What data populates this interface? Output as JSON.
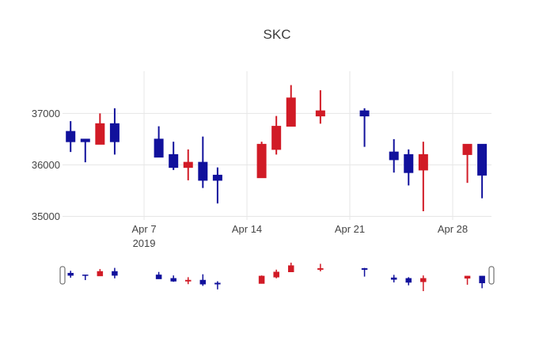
{
  "title": "SKC",
  "chart_data": {
    "type": "candlestick",
    "title": "SKC",
    "legend": "none",
    "grid": true,
    "colors": {
      "increasing": "#d11b26",
      "decreasing": "#11119c",
      "gridline": "#e6e6e6",
      "text": "#444444",
      "background": "#ffffff",
      "handle_border": "#555555",
      "handle_fill": "#ffffff"
    },
    "yaxis": {
      "ticks": [
        35000,
        36000,
        37000
      ],
      "tick_labels": [
        "35000",
        "36000",
        "37000"
      ],
      "range": [
        34930,
        37820
      ]
    },
    "xaxis": {
      "ticks": [
        {
          "day": 7,
          "label": "Apr 7",
          "year": "2019"
        },
        {
          "day": 14,
          "label": "Apr 14",
          "year": ""
        },
        {
          "day": 21,
          "label": "Apr 21",
          "year": ""
        },
        {
          "day": 28,
          "label": "Apr 28",
          "year": ""
        }
      ],
      "range_days": [
        1.45,
        30.64
      ]
    },
    "candles": [
      {
        "date": "2019-04-02",
        "day": 2,
        "open": 36650,
        "high": 36850,
        "low": 36250,
        "close": 36450
      },
      {
        "date": "2019-04-03",
        "day": 3,
        "open": 36500,
        "high": 36500,
        "low": 36050,
        "close": 36450
      },
      {
        "date": "2019-04-04",
        "day": 4,
        "open": 36400,
        "high": 37000,
        "low": 36400,
        "close": 36800
      },
      {
        "date": "2019-04-05",
        "day": 5,
        "open": 36800,
        "high": 37100,
        "low": 36200,
        "close": 36450
      },
      {
        "date": "2019-04-08",
        "day": 8,
        "open": 36500,
        "high": 36750,
        "low": 36150,
        "close": 36150
      },
      {
        "date": "2019-04-09",
        "day": 9,
        "open": 36200,
        "high": 36450,
        "low": 35900,
        "close": 35950
      },
      {
        "date": "2019-04-10",
        "day": 10,
        "open": 35950,
        "high": 36300,
        "low": 35700,
        "close": 36050
      },
      {
        "date": "2019-04-11",
        "day": 11,
        "open": 36050,
        "high": 36550,
        "low": 35550,
        "close": 35700
      },
      {
        "date": "2019-04-12",
        "day": 12,
        "open": 35800,
        "high": 35950,
        "low": 35250,
        "close": 35700
      },
      {
        "date": "2019-04-15",
        "day": 15,
        "open": 35750,
        "high": 36450,
        "low": 35750,
        "close": 36400
      },
      {
        "date": "2019-04-16",
        "day": 16,
        "open": 36300,
        "high": 36950,
        "low": 36200,
        "close": 36750
      },
      {
        "date": "2019-04-17",
        "day": 17,
        "open": 36750,
        "high": 37550,
        "low": 36750,
        "close": 37300
      },
      {
        "date": "2019-04-19",
        "day": 19,
        "open": 36950,
        "high": 37450,
        "low": 36800,
        "close": 37050
      },
      {
        "date": "2019-04-22",
        "day": 22,
        "open": 37050,
        "high": 37100,
        "low": 36350,
        "close": 36950
      },
      {
        "date": "2019-04-24",
        "day": 24,
        "open": 36250,
        "high": 36500,
        "low": 35850,
        "close": 36100
      },
      {
        "date": "2019-04-25",
        "day": 25,
        "open": 36200,
        "high": 36300,
        "low": 35600,
        "close": 35850
      },
      {
        "date": "2019-04-26",
        "day": 26,
        "open": 35900,
        "high": 36450,
        "low": 35100,
        "close": 36200
      },
      {
        "date": "2019-04-29",
        "day": 29,
        "open": 36200,
        "high": 36400,
        "low": 35650,
        "close": 36400
      },
      {
        "date": "2019-04-30",
        "day": 30,
        "open": 36400,
        "high": 36400,
        "low": 35350,
        "close": 35800
      }
    ],
    "rangeslider": {
      "visible": true,
      "value_range": [
        35100,
        37550
      ]
    }
  }
}
